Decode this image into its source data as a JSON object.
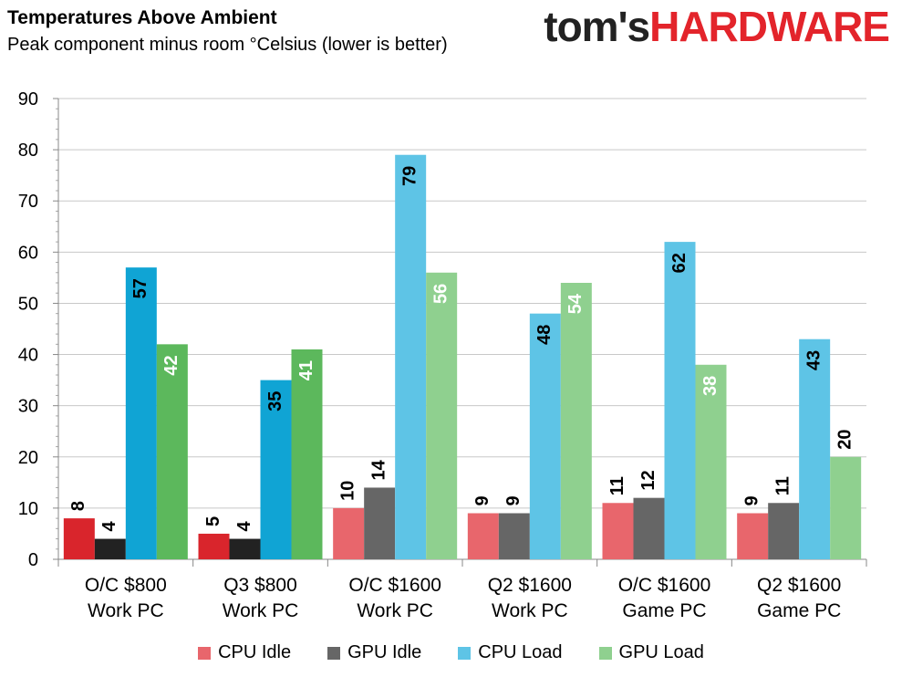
{
  "header": {
    "title": "Temperatures Above Ambient",
    "subtitle": "Peak component minus room °Celsius (lower is better)",
    "logo_part1": "tom's",
    "logo_part2": "HARDWARE"
  },
  "chart_data": {
    "type": "bar",
    "title": "Temperatures Above Ambient",
    "subtitle": "Peak component minus room °Celsius (lower is better)",
    "categories": [
      [
        "O/C $800",
        "Work PC"
      ],
      [
        "Q3 $800",
        "Work PC"
      ],
      [
        "O/C $1600",
        "Work PC"
      ],
      [
        "Q2 $1600",
        "Work PC"
      ],
      [
        "O/C $1600",
        "Game PC"
      ],
      [
        "Q2 $1600",
        "Game PC"
      ]
    ],
    "series": [
      {
        "name": "CPU Idle",
        "values": [
          8,
          5,
          10,
          9,
          11,
          9
        ]
      },
      {
        "name": "GPU Idle",
        "values": [
          4,
          4,
          14,
          9,
          12,
          11
        ]
      },
      {
        "name": "CPU Load",
        "values": [
          57,
          35,
          79,
          48,
          62,
          43
        ]
      },
      {
        "name": "GPU Load",
        "values": [
          42,
          41,
          56,
          54,
          38,
          20
        ]
      }
    ],
    "data_labels": [
      [
        "8",
        "5",
        "10",
        "9",
        "11",
        "9"
      ],
      [
        "4",
        "4",
        "14",
        "9",
        "12",
        "11"
      ],
      [
        "57",
        "35",
        "79",
        "48",
        "62",
        "43"
      ],
      [
        "42",
        "41",
        "56",
        "54",
        "38",
        "20"
      ]
    ],
    "ylim": [
      0,
      90
    ],
    "yticks": [
      "0",
      "10",
      "20",
      "30",
      "40",
      "50",
      "60",
      "70",
      "80",
      "90"
    ],
    "grid": true,
    "legend_position": "bottom",
    "colors": {
      "legend": [
        "#e8666c",
        "#666666",
        "#5ec4e6",
        "#8fd08f"
      ],
      "first_two_groups": [
        "#d9252c",
        "#222222",
        "#10a4d4",
        "#5cb85c"
      ],
      "other_groups": [
        "#e8666c",
        "#666666",
        "#5ec4e6",
        "#8fd08f"
      ],
      "label_inside_color": [
        "#000000",
        "#000000",
        "#000000",
        "#ffffff"
      ]
    }
  }
}
